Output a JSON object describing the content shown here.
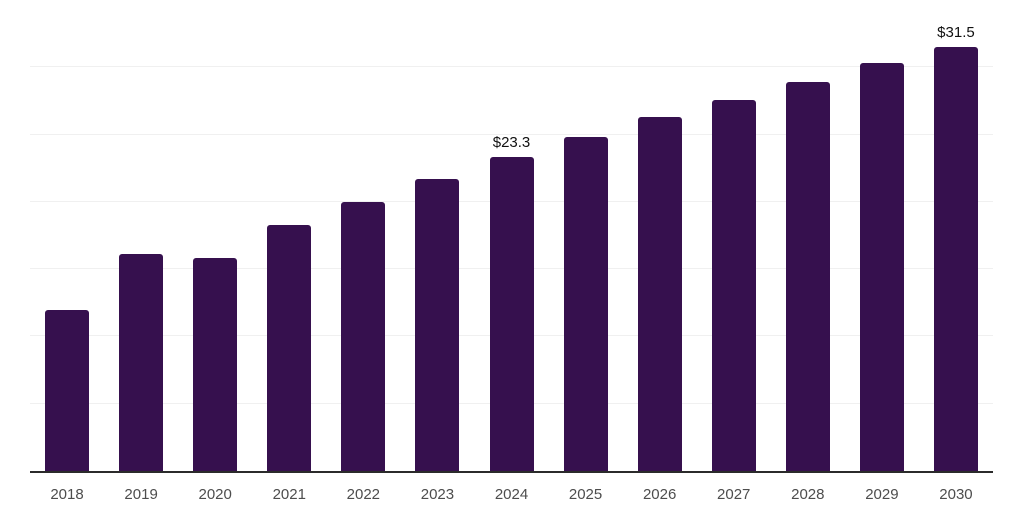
{
  "chart_data": {
    "type": "bar",
    "categories": [
      "2018",
      "2019",
      "2020",
      "2021",
      "2022",
      "2023",
      "2024",
      "2025",
      "2026",
      "2027",
      "2028",
      "2029",
      "2030"
    ],
    "values": [
      12.0,
      16.1,
      15.8,
      18.3,
      20.0,
      21.7,
      23.3,
      24.8,
      26.3,
      27.6,
      28.9,
      30.3,
      31.5
    ],
    "point_labels": [
      "",
      "",
      "",
      "",
      "",
      "",
      "$23.3",
      "",
      "",
      "",
      "",
      "",
      "$31.5"
    ],
    "title": "",
    "xlabel": "",
    "ylabel": "",
    "ylim": [
      0,
      35
    ],
    "grid": true,
    "grid_step": 5,
    "y_tick_labels_visible": false,
    "legend": false,
    "colors": {
      "bar": "#36104e",
      "gridline": "#f0f0f0",
      "axis_line": "#2b2b2b",
      "tick_text": "#4d4d4d",
      "value_label_text": "#111111",
      "background": "#ffffff"
    }
  }
}
